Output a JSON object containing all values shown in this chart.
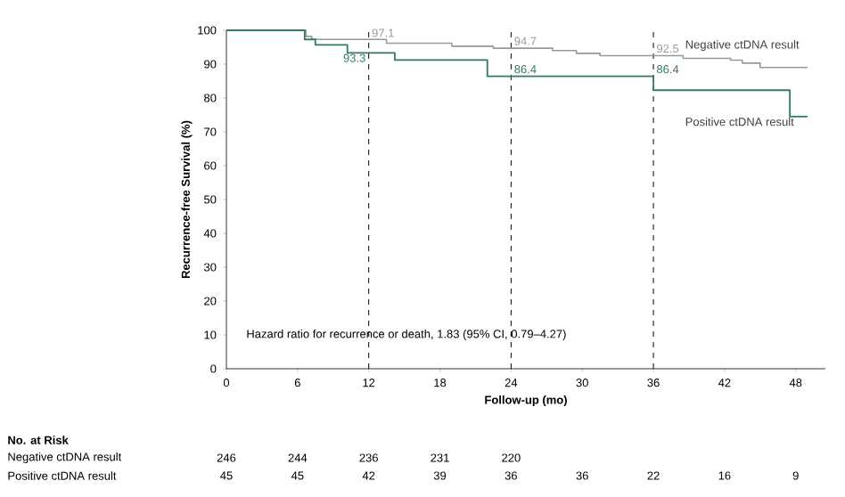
{
  "chart_data": {
    "type": "step",
    "xlabel": "Follow-up (mo)",
    "ylabel": "Recurrence-free Survival (%)",
    "xlim": [
      0,
      50.5
    ],
    "ylim": [
      0,
      100
    ],
    "xticks": [
      0,
      6,
      12,
      18,
      24,
      30,
      36,
      42,
      48
    ],
    "yticks": [
      0,
      10,
      20,
      30,
      40,
      50,
      60,
      70,
      80,
      90,
      100
    ],
    "series": [
      {
        "name": "Negative ctDNA result",
        "color": "#999999",
        "x": [
          0,
          6.7,
          7.2,
          13.5,
          19,
          22.5,
          27.5,
          29.5,
          31.5,
          38.5,
          42.5,
          43.5,
          45,
          49
        ],
        "values": [
          100,
          98.2,
          97.3,
          96.2,
          95.3,
          94.7,
          94,
          93.2,
          92.5,
          91.7,
          91.2,
          90.3,
          89,
          89
        ]
      },
      {
        "name": "Positive ctDNA result",
        "color": "#2e7d5b",
        "x": [
          0,
          6.6,
          7.5,
          10.2,
          14.2,
          22,
          36,
          47.5,
          49
        ],
        "values": [
          100,
          97.3,
          95.7,
          93.3,
          91.2,
          86.4,
          82.3,
          74.5,
          74.5
        ]
      }
    ],
    "ref_lines": [
      {
        "axis": "x",
        "value": 12,
        "line_style": "dashed"
      },
      {
        "axis": "x",
        "value": 24,
        "line_style": "dashed"
      },
      {
        "axis": "x",
        "value": 36,
        "line_style": "dashed"
      }
    ],
    "annotations": [
      "Hazard ratio for recurrence or death, 1.83 (95% CI, 0.79–4.27)",
      "No. at Risk",
      "Negative ctDNA result",
      "Positive ctDNA result",
      "246",
      "244",
      "236",
      "231",
      "220",
      "45",
      "45",
      "42",
      "39",
      "36",
      "36",
      "22",
      "16",
      "9",
      {
        "text": "97.1",
        "x": 12,
        "y": 97.1
      },
      {
        "text": "94.7",
        "x": 24,
        "y": 94.7
      },
      {
        "text": "92.5",
        "x": 36,
        "y": 92.5
      },
      {
        "text": "93.3",
        "x": 12,
        "y": 93.3
      },
      {
        "text": "86.4",
        "x": 24,
        "y": 86.4
      },
      {
        "text": "86.4",
        "x": 36,
        "y": 86.4
      }
    ]
  }
}
